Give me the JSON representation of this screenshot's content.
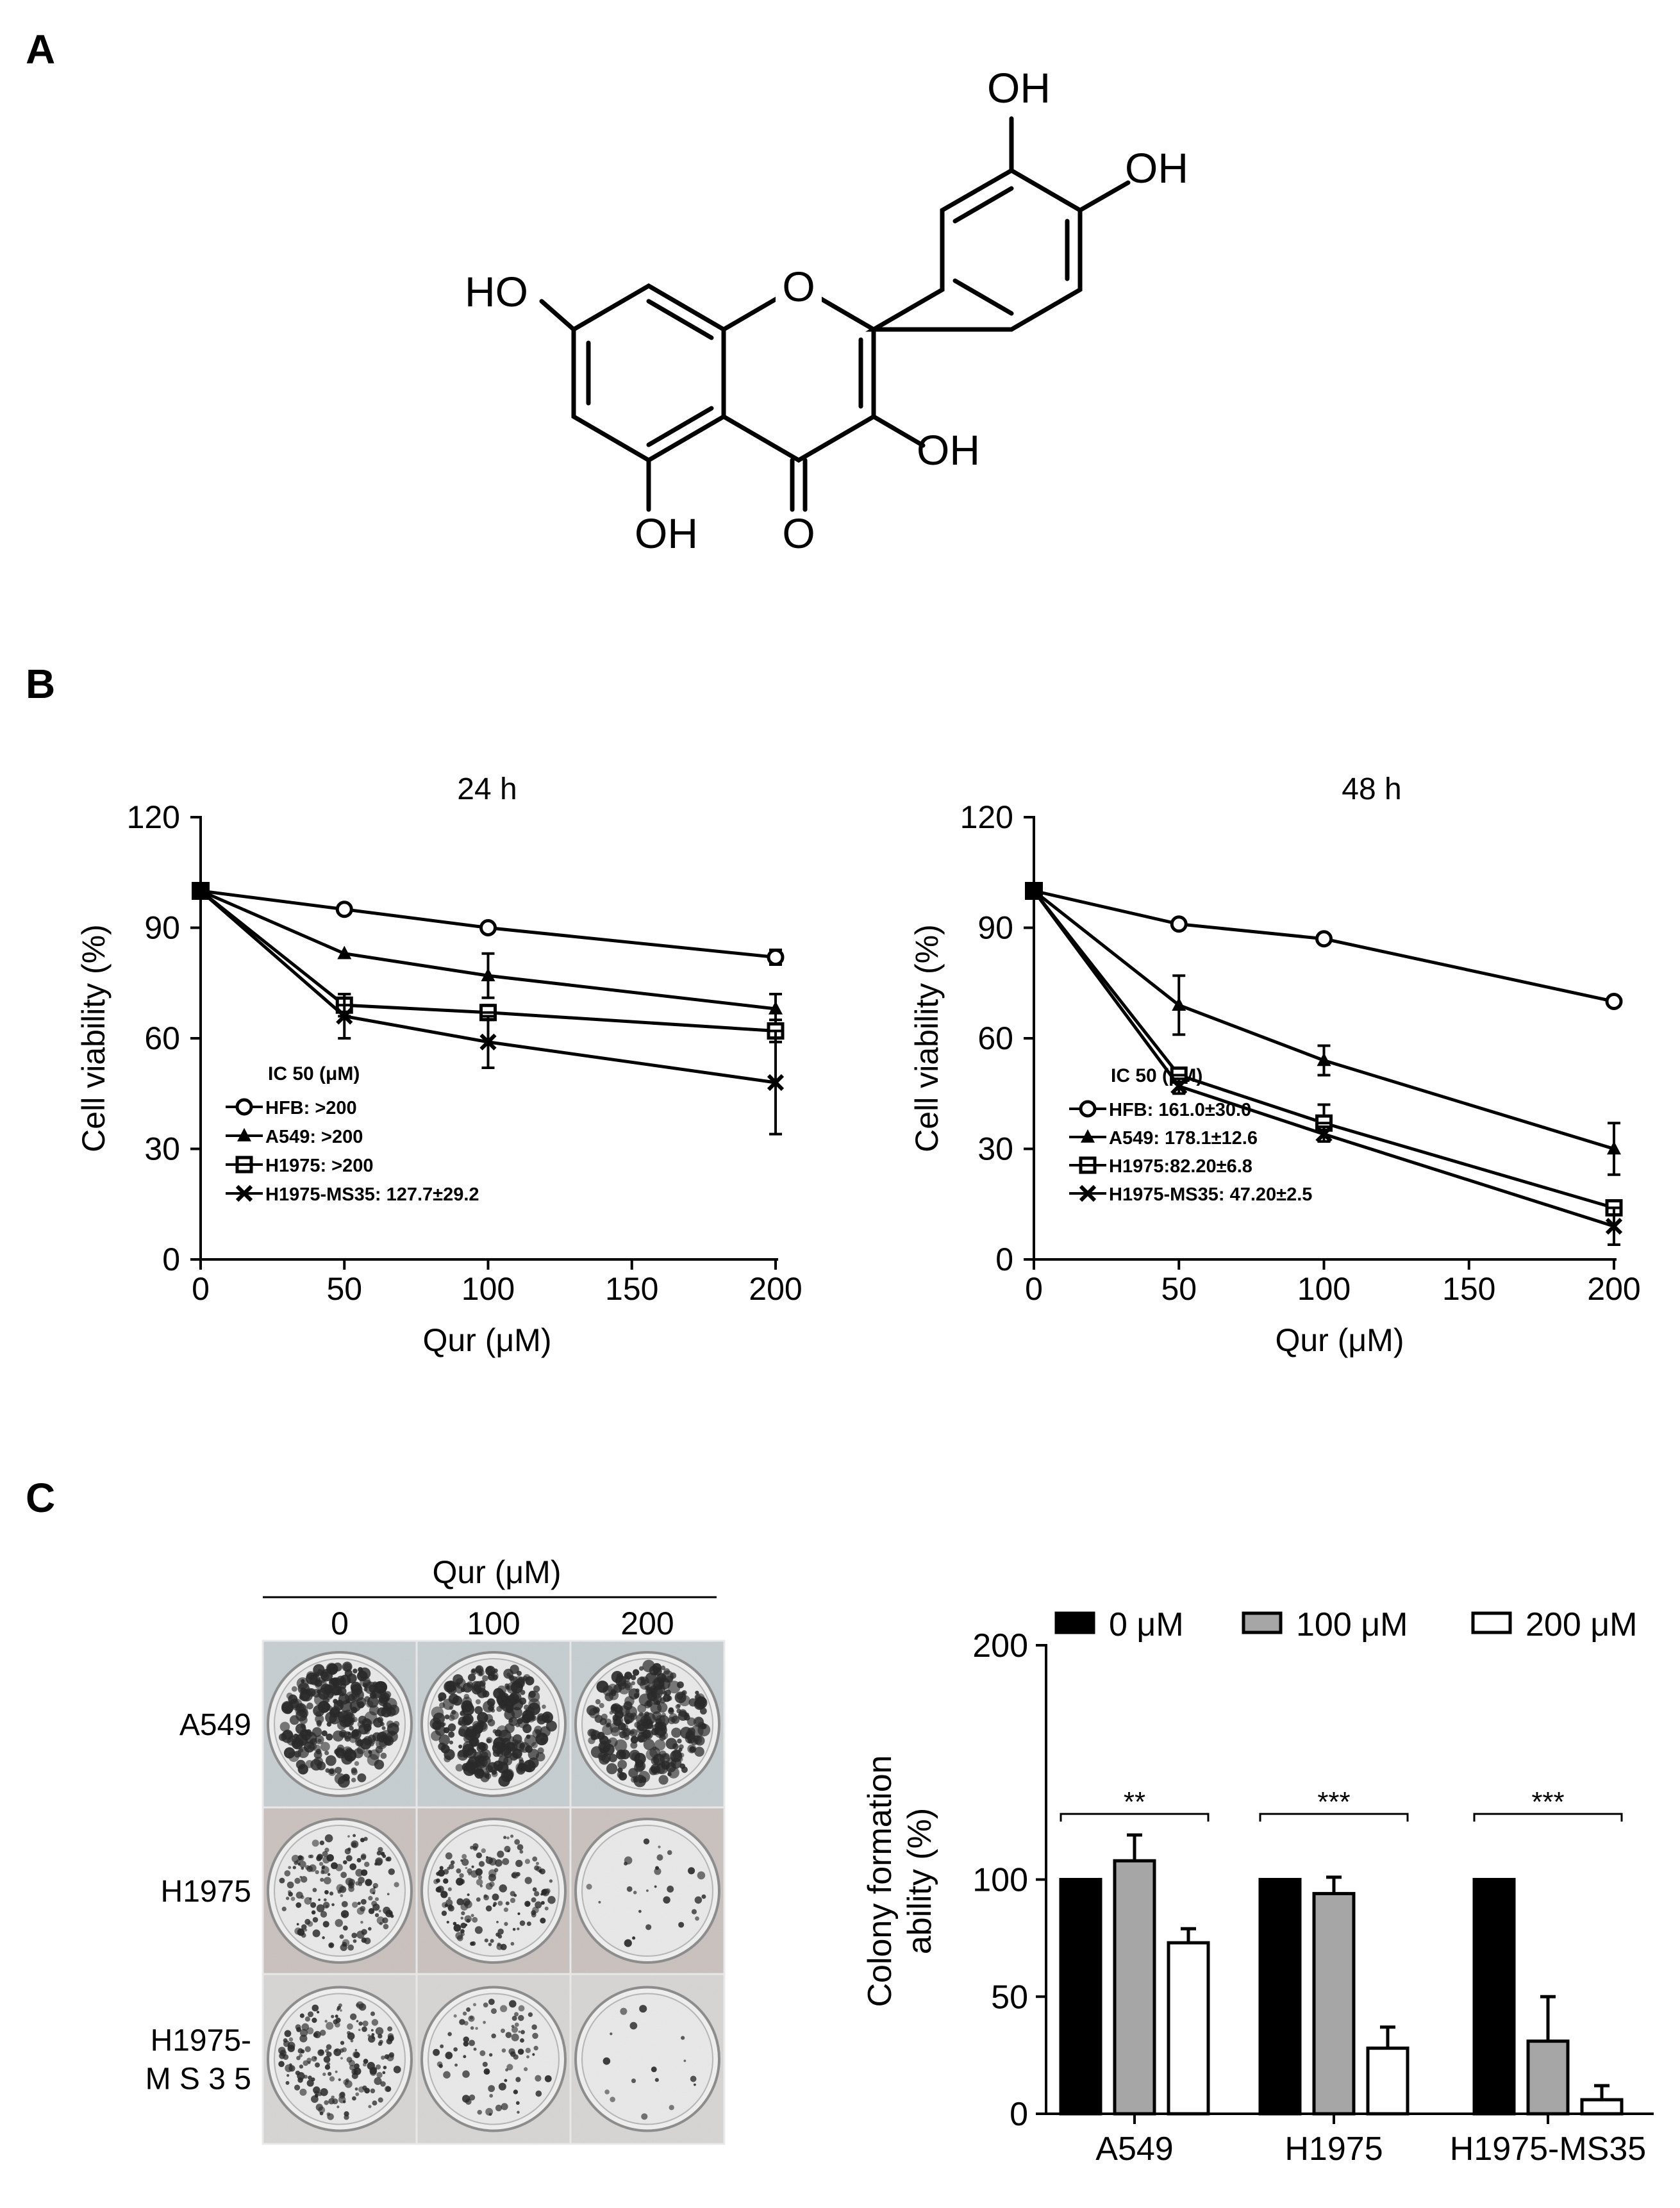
{
  "panels": {
    "a": "A",
    "b": "B",
    "c": "C"
  },
  "molecule": {
    "labels": {
      "oh_top": "OH",
      "oh_right": "OH",
      "ho_left": "HO",
      "o_ring": "O",
      "oh_c3": "OH",
      "oh_c5": "OH",
      "o_keto": "O"
    }
  },
  "chart_data": [
    {
      "id": "viability-24h",
      "type": "line",
      "title": "24 h",
      "xlabel": "Qur (μM)",
      "ylabel": "Cell viability (%)",
      "x": [
        0,
        50,
        100,
        200
      ],
      "xlim": [
        0,
        200
      ],
      "ylim": [
        0,
        120
      ],
      "xticks": [
        0,
        50,
        100,
        150,
        200
      ],
      "yticks": [
        0,
        30,
        60,
        90,
        120
      ],
      "legend_title": "IC 50 (μM)",
      "legend_position": "bottom-left",
      "series": [
        {
          "name": "HFB",
          "legend": "HFB: >200",
          "marker": "circle",
          "values": [
            100,
            95,
            90,
            82
          ],
          "err": [
            1,
            1,
            1,
            2
          ]
        },
        {
          "name": "A549",
          "legend": "A549: >200",
          "marker": "triangle",
          "values": [
            100,
            83,
            77,
            68
          ],
          "err": [
            1,
            1,
            6,
            4
          ]
        },
        {
          "name": "H1975",
          "legend": "H1975: >200",
          "marker": "square",
          "values": [
            100,
            69,
            67,
            62
          ],
          "err": [
            1,
            3,
            2,
            3
          ]
        },
        {
          "name": "H1975-MS35",
          "legend": "H1975-MS35: 127.7±29.2",
          "marker": "cross",
          "values": [
            100,
            66,
            59,
            48
          ],
          "err": [
            1,
            6,
            7,
            14
          ]
        }
      ]
    },
    {
      "id": "viability-48h",
      "type": "line",
      "title": "48 h",
      "xlabel": "Qur (μM)",
      "ylabel": "Cell viability (%)",
      "x": [
        0,
        50,
        100,
        200
      ],
      "xlim": [
        0,
        200
      ],
      "ylim": [
        0,
        120
      ],
      "xticks": [
        0,
        50,
        100,
        150,
        200
      ],
      "yticks": [
        0,
        30,
        60,
        90,
        120
      ],
      "legend_title": "IC 50 (μM)",
      "legend_position": "bottom-left",
      "series": [
        {
          "name": "HFB",
          "legend": "HFB: 161.0±30.0",
          "marker": "circle",
          "values": [
            100,
            91,
            87,
            70
          ],
          "err": [
            1,
            1,
            1,
            1
          ]
        },
        {
          "name": "A549",
          "legend": "A549: 178.1±12.6",
          "marker": "triangle",
          "values": [
            100,
            69,
            54,
            30
          ],
          "err": [
            1,
            8,
            4,
            7
          ]
        },
        {
          "name": "H1975",
          "legend": "H1975:82.20±6.8",
          "marker": "square",
          "values": [
            100,
            50,
            37,
            14
          ],
          "err": [
            1,
            2,
            5,
            2
          ]
        },
        {
          "name": "H1975-MS35",
          "legend": "H1975-MS35: 47.20±2.5",
          "marker": "cross",
          "values": [
            100,
            47,
            34,
            9
          ],
          "err": [
            1,
            2,
            2,
            5
          ]
        }
      ]
    },
    {
      "id": "colony-formation",
      "type": "bar",
      "xlabel": "",
      "ylabel": "Colony formation ability (%)",
      "ylabel_lines": [
        "Colony formation",
        "ability (%)"
      ],
      "categories": [
        "A549",
        "H1975",
        "H1975-MS35"
      ],
      "ylim": [
        0,
        200
      ],
      "yticks": [
        0,
        50,
        100,
        200
      ],
      "legend_position": "top",
      "series": [
        {
          "name": "0 μM",
          "color": "#000000",
          "values": [
            100,
            100,
            100
          ],
          "err": [
            0,
            0,
            0
          ]
        },
        {
          "name": "100 μM",
          "color": "#a6a6a6",
          "values": [
            108,
            94,
            31
          ],
          "err": [
            11,
            7,
            19
          ]
        },
        {
          "name": "200 μM",
          "color": "#ffffff",
          "values": [
            73,
            28,
            6
          ],
          "err": [
            6,
            9,
            6
          ]
        }
      ],
      "significance": [
        "**",
        "***",
        "***"
      ]
    }
  ],
  "plate_image": {
    "header": "Qur (μM)",
    "columns": [
      "0",
      "100",
      "200"
    ],
    "rows": [
      "A549",
      "H1975",
      "H1975-\nM S 3 5"
    ],
    "row_lines": [
      [
        "A549"
      ],
      [
        "H1975"
      ],
      [
        "H1975-",
        "M S 3 5"
      ]
    ],
    "density": [
      [
        1.0,
        1.0,
        1.0
      ],
      [
        0.6,
        0.55,
        0.08
      ],
      [
        0.65,
        0.3,
        0.04
      ]
    ],
    "plate_colors": [
      "#c6cdd0",
      "#c9c1bd",
      "#d7d5d4"
    ]
  }
}
